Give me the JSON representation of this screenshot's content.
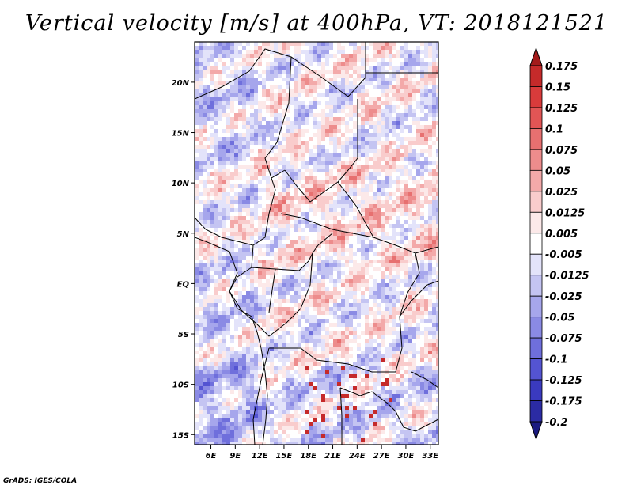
{
  "title": "Vertical velocity [m/s] at 400hPa, VT: 2018121521",
  "credit": "GrADS: IGES/COLA",
  "map": {
    "lon_range": [
      4,
      34
    ],
    "lat_range": [
      -16,
      24
    ],
    "x_ticks": [
      "6E",
      "9E",
      "12E",
      "15E",
      "18E",
      "21E",
      "24E",
      "27E",
      "30E",
      "33E"
    ],
    "y_ticks": [
      "20N",
      "15N",
      "10N",
      "5N",
      "EQ",
      "5S",
      "10S",
      "15S"
    ],
    "field": "vertical velocity (m/s), 400hPa"
  },
  "colorbar": {
    "labels": [
      "0.175",
      "0.15",
      "0.125",
      "0.1",
      "0.075",
      "0.05",
      "0.025",
      "0.0125",
      "0.005",
      "-0.005",
      "-0.0125",
      "-0.025",
      "-0.05",
      "-0.075",
      "-0.1",
      "-0.125",
      "-0.175",
      "-0.2"
    ],
    "colors": [
      "#a31b1b",
      "#c52a2a",
      "#d93b3b",
      "#e25555",
      "#e77070",
      "#ed8c8c",
      "#f3a9a9",
      "#f9cccc",
      "#fce9e9",
      "#ffffff",
      "#e3e3fa",
      "#c4c4f2",
      "#a6a6ec",
      "#8a8ae4",
      "#6f6fdc",
      "#5454d2",
      "#3a3abf",
      "#2b2ba4",
      "#1a1a80"
    ]
  }
}
